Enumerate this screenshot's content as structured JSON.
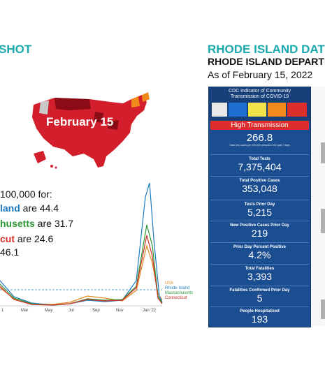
{
  "left_header": "SHOT",
  "right_header": "RHODE ISLAND DAT",
  "dept_name": "RHODE ISLAND DEPARTI",
  "as_of": "As of February 15, 2022",
  "map": {
    "label": "February 15",
    "colors": {
      "high": "#d21f2b",
      "dark": "#8b0b16",
      "orange": "#f08a1b",
      "grey": "#c9c9c9"
    }
  },
  "rates": {
    "intro": "100,000 for:",
    "rows": [
      {
        "state": "land",
        "connector": "are",
        "value": "44.4",
        "color": "#1c7bbf"
      },
      {
        "state": "husetts",
        "connector": "are",
        "value": "31.7",
        "color": "#2e9a35"
      },
      {
        "state": "cut",
        "connector": "are",
        "value": "24.6",
        "color": "#d0302c"
      },
      {
        "state": "",
        "connector": "",
        "value": "46.1",
        "color": "#111"
      }
    ]
  },
  "chart_data": {
    "type": "line",
    "x_ticks": [
      "1",
      "Mar",
      "May",
      "Jul",
      "Sep",
      "Nov",
      "Jan '22"
    ],
    "series": [
      {
        "name": "USA",
        "color": "#e08a1f"
      },
      {
        "name": "Rhode Island",
        "color": "#1c7bbf"
      },
      {
        "name": "Massachusetts",
        "color": "#2e9a35"
      },
      {
        "name": "Connecticut",
        "color": "#d0302c"
      }
    ]
  },
  "panel": {
    "cdc_title_1": "CDC Indicator of Community",
    "cdc_title_2": "Transmission of COVID-19",
    "high_label": "High Transmission",
    "cases_value": "266.8",
    "cases_note": "Total new cases per 100,000 persons in the past 7 days",
    "stats": [
      {
        "label": "Total Tests",
        "value": "7,375,404"
      },
      {
        "label": "Total Positive Cases",
        "value": "353,048"
      },
      {
        "label": "Tests Prior Day",
        "value": "5,215"
      },
      {
        "label": "New Positive Cases Prior Day",
        "value": "219"
      },
      {
        "label": "Prior Day Percent Positive",
        "value": "4.2%"
      },
      {
        "label": "Total Fatalities",
        "value": "3,393"
      },
      {
        "label": "Fatalities Confirmed Prior Day",
        "value": "5"
      },
      {
        "label": "People Hospitalized",
        "value": "193"
      }
    ]
  }
}
